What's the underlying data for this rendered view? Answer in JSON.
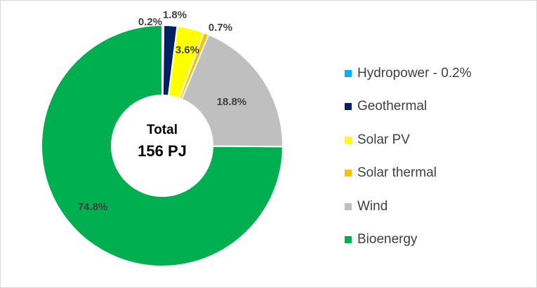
{
  "chart_data": {
    "type": "pie",
    "donut": true,
    "center_title": "Total",
    "center_total": "156 PJ",
    "legend_position": "right",
    "slices": [
      {
        "name": "Hydropower - 0.2%",
        "value": 0.2,
        "label": "0.2%",
        "color": "#00b0f0"
      },
      {
        "name": "Geothermal",
        "value": 1.8,
        "label": "1.8%",
        "color": "#002060"
      },
      {
        "name": "Solar PV",
        "value": 3.6,
        "label": "3.6%",
        "color": "#ffff00"
      },
      {
        "name": "Solar thermal",
        "value": 0.7,
        "label": "0.7%",
        "color": "#ffc000"
      },
      {
        "name": "Wind",
        "value": 18.8,
        "label": "18.8%",
        "color": "#bfbfbf"
      },
      {
        "name": "Bioenergy",
        "value": 74.8,
        "label": "74.8%",
        "color": "#00b050"
      }
    ]
  }
}
